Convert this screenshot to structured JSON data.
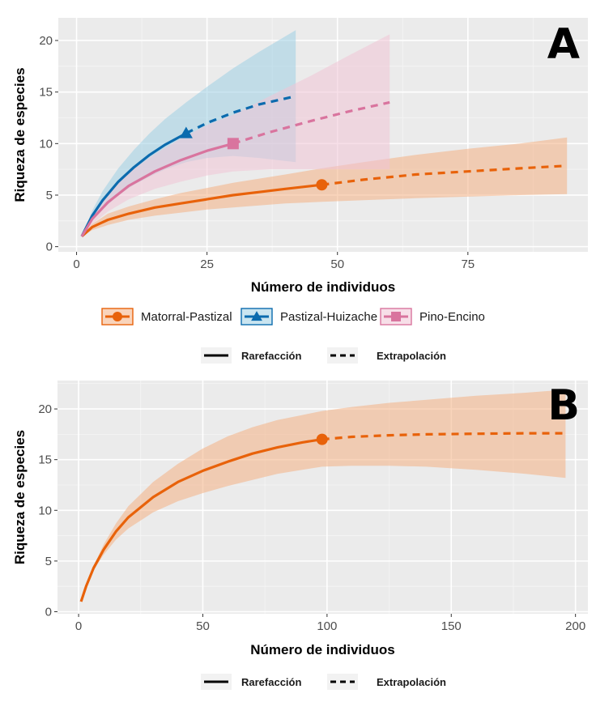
{
  "chart_data": [
    {
      "panel": "A",
      "type": "line",
      "title": "",
      "xlabel": "Número de individuos",
      "ylabel": "Riqueza de especies",
      "xlim": [
        -3.5,
        98
      ],
      "ylim": [
        -0.5,
        22.2
      ],
      "xticks": [
        0,
        25,
        50,
        75
      ],
      "yticks": [
        0,
        5,
        10,
        15,
        20
      ],
      "grid": true,
      "legend_position": "bottom",
      "series": [
        {
          "name": "Matorral-Pastizal",
          "color": "#E8620A",
          "fill": "#F4B183",
          "marker": "circle",
          "observed": {
            "x": 47,
            "y": 6
          },
          "rarefaction": {
            "x": [
              1,
              3,
              6,
              10,
              15,
              20,
              25,
              30,
              35,
              40,
              47
            ],
            "y": [
              1,
              1.9,
              2.6,
              3.2,
              3.8,
              4.2,
              4.6,
              5.0,
              5.3,
              5.6,
              6.0
            ]
          },
          "extrapolation": {
            "x": [
              47,
              55,
              65,
              75,
              85,
              94
            ],
            "y": [
              6.0,
              6.5,
              7.0,
              7.3,
              7.6,
              7.85
            ]
          },
          "ci_lower": {
            "x": [
              1,
              3,
              6,
              10,
              15,
              20,
              25,
              30,
              35,
              40,
              47,
              55,
              65,
              75,
              85,
              94
            ],
            "y": [
              1,
              1.6,
              2.1,
              2.6,
              3.0,
              3.3,
              3.6,
              3.8,
              4.0,
              4.2,
              4.35,
              4.5,
              4.7,
              4.85,
              5.0,
              5.1
            ]
          },
          "ci_upper": {
            "x": [
              1,
              3,
              6,
              10,
              15,
              20,
              25,
              30,
              35,
              40,
              47,
              55,
              65,
              75,
              85,
              94
            ],
            "y": [
              1,
              2.2,
              3.2,
              3.9,
              4.6,
              5.2,
              5.7,
              6.2,
              6.6,
              7.0,
              7.6,
              8.2,
              8.9,
              9.5,
              10.0,
              10.6
            ]
          }
        },
        {
          "name": "Pastizal-Huizache",
          "color": "#0B6BAE",
          "fill": "#9ECFE3",
          "marker": "triangle",
          "observed": {
            "x": 21,
            "y": 11
          },
          "rarefaction": {
            "x": [
              1,
              3,
              5,
              8,
              11,
              14,
              17,
              21
            ],
            "y": [
              1,
              3.0,
              4.5,
              6.3,
              7.7,
              8.9,
              9.9,
              11.0
            ]
          },
          "extrapolation": {
            "x": [
              21,
              25,
              30,
              35,
              42
            ],
            "y": [
              11.0,
              12.0,
              13.0,
              13.8,
              14.6
            ]
          },
          "ci_lower": {
            "x": [
              1,
              3,
              5,
              8,
              11,
              14,
              17,
              21,
              25,
              30,
              35,
              42
            ],
            "y": [
              1,
              2.5,
              3.6,
              5.0,
              6.0,
              6.8,
              7.5,
              8.2,
              8.6,
              8.8,
              8.6,
              8.2
            ]
          },
          "ci_upper": {
            "x": [
              1,
              3,
              5,
              8,
              11,
              14,
              17,
              21,
              25,
              30,
              35,
              42
            ],
            "y": [
              1,
              3.5,
              5.4,
              7.6,
              9.4,
              11.0,
              12.4,
              14.0,
              15.5,
              17.3,
              18.9,
              21.0
            ]
          }
        },
        {
          "name": "Pino-Encino",
          "color": "#D9749E",
          "fill": "#F0C4D6",
          "marker": "square",
          "observed": {
            "x": 30,
            "y": 10
          },
          "rarefaction": {
            "x": [
              1,
              3,
              6,
              10,
              15,
              20,
              25,
              30
            ],
            "y": [
              1,
              2.7,
              4.3,
              5.9,
              7.3,
              8.4,
              9.3,
              10.0
            ]
          },
          "extrapolation": {
            "x": [
              30,
              37,
              45,
              52,
              60
            ],
            "y": [
              10.0,
              11.1,
              12.2,
              13.1,
              14.0
            ]
          },
          "ci_lower": {
            "x": [
              1,
              3,
              6,
              10,
              15,
              20,
              25,
              30,
              37,
              45,
              52,
              60
            ],
            "y": [
              1,
              2.2,
              3.4,
              4.6,
              5.6,
              6.3,
              6.9,
              7.3,
              7.5,
              7.5,
              7.5,
              7.5
            ]
          },
          "ci_upper": {
            "x": [
              1,
              3,
              6,
              10,
              15,
              20,
              25,
              30,
              37,
              45,
              52,
              60
            ],
            "y": [
              1,
              3.2,
              5.2,
              7.2,
              9.0,
              10.5,
              11.8,
              12.8,
              14.6,
              16.6,
              18.5,
              20.6
            ]
          }
        }
      ],
      "panel_label": "A"
    },
    {
      "panel": "B",
      "type": "line",
      "title": "",
      "xlabel": "Número de individuos",
      "ylabel": "Riqueza de especies",
      "xlim": [
        -8.5,
        205
      ],
      "ylim": [
        -0.2,
        22.8
      ],
      "xticks": [
        0,
        50,
        100,
        150,
        200
      ],
      "yticks": [
        0,
        5,
        10,
        15,
        20
      ],
      "grid": true,
      "legend_position": "bottom",
      "series": [
        {
          "name": "Matorral-Pastizal",
          "color": "#E8620A",
          "fill": "#F4B183",
          "marker": "circle",
          "observed": {
            "x": 98,
            "y": 17
          },
          "rarefaction": {
            "x": [
              1,
              3,
              6,
              10,
              15,
              20,
              30,
              40,
              50,
              60,
              70,
              80,
              90,
              98
            ],
            "y": [
              1,
              2.5,
              4.3,
              6.1,
              7.9,
              9.3,
              11.3,
              12.8,
              13.9,
              14.8,
              15.6,
              16.2,
              16.7,
              17.0
            ]
          },
          "extrapolation": {
            "x": [
              98,
              110,
              125,
              140,
              160,
              180,
              196
            ],
            "y": [
              17.0,
              17.25,
              17.4,
              17.5,
              17.55,
              17.6,
              17.6
            ]
          },
          "ci_lower": {
            "x": [
              1,
              3,
              6,
              10,
              15,
              20,
              30,
              40,
              50,
              60,
              70,
              80,
              90,
              98,
              110,
              125,
              140,
              160,
              180,
              196
            ],
            "y": [
              1,
              2.4,
              4.1,
              5.6,
              7.1,
              8.2,
              9.8,
              10.9,
              11.7,
              12.4,
              13.0,
              13.6,
              14.0,
              14.3,
              14.4,
              14.4,
              14.3,
              14.0,
              13.6,
              13.2
            ]
          },
          "ci_upper": {
            "x": [
              1,
              3,
              6,
              10,
              15,
              20,
              30,
              40,
              50,
              60,
              70,
              80,
              90,
              98,
              110,
              125,
              140,
              160,
              180,
              196
            ],
            "y": [
              1,
              2.6,
              4.5,
              6.6,
              8.7,
              10.4,
              12.8,
              14.6,
              16.1,
              17.3,
              18.2,
              18.9,
              19.4,
              19.8,
              20.2,
              20.6,
              20.9,
              21.3,
              21.6,
              21.9
            ]
          }
        }
      ],
      "panel_label": "B"
    }
  ],
  "legend_sites": [
    {
      "label": "Matorral-Pastizal",
      "marker": "circle",
      "color": "#E8620A",
      "fill": "#F4B183"
    },
    {
      "label": "Pastizal-Huizache",
      "marker": "triangle",
      "color": "#0B6BAE",
      "fill": "#9ECFE3"
    },
    {
      "label": "Pino-Encino",
      "marker": "square",
      "color": "#D9749E",
      "fill": "#F0C4D6"
    }
  ],
  "legend_methods": [
    {
      "label": "Rarefacción",
      "style": "solid"
    },
    {
      "label": "Extrapolación",
      "style": "dashed"
    }
  ],
  "colors": {
    "panel_bg": "#EBEBEB",
    "grid_major": "#FFFFFF",
    "grid_minor": "#F5F5F5"
  }
}
